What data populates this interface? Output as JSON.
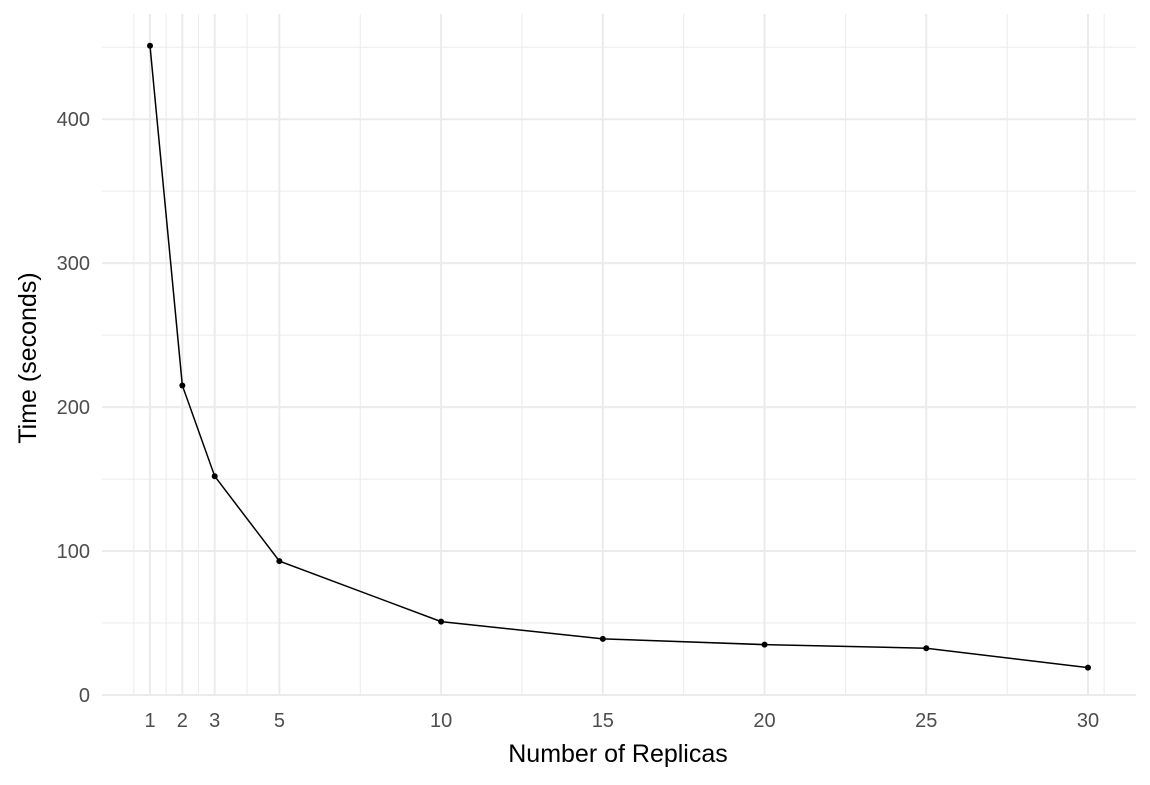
{
  "chart_data": {
    "type": "line",
    "title": "",
    "xlabel": "Number of Replicas",
    "ylabel": "Time (seconds)",
    "x": [
      1,
      2,
      3,
      5,
      10,
      15,
      20,
      25,
      30
    ],
    "series": [
      {
        "values": [
          451,
          215,
          152,
          93,
          51,
          39,
          35,
          32.5,
          19
        ]
      }
    ],
    "x_ticks": [
      1,
      2,
      3,
      5,
      10,
      15,
      20,
      25,
      30
    ],
    "y_ticks": [
      0,
      100,
      200,
      300,
      400
    ],
    "xlim": [
      0,
      31
    ],
    "ylim": [
      0,
      472
    ],
    "grid": true,
    "markers": true,
    "line_color": "#000000",
    "grid_color": "#ebebeb",
    "background_color": "#ffffff"
  }
}
